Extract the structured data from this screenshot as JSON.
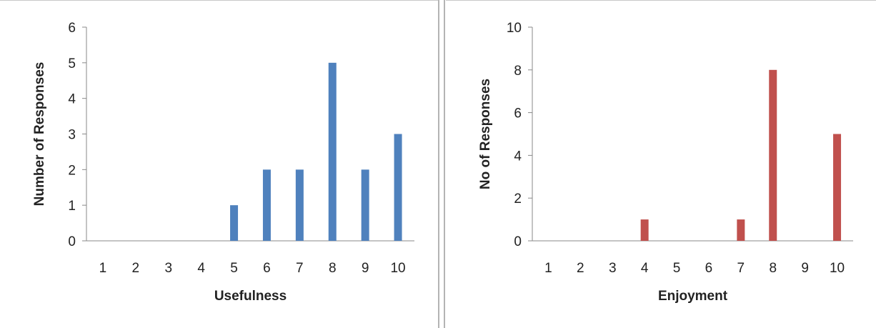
{
  "chart_data": [
    {
      "type": "bar",
      "categories": [
        "1",
        "2",
        "3",
        "4",
        "5",
        "6",
        "7",
        "8",
        "9",
        "10"
      ],
      "values": [
        0,
        0,
        0,
        0,
        1,
        2,
        2,
        5,
        2,
        3
      ],
      "xlabel": "Usefulness",
      "ylabel": "Number of Responses",
      "ylim": [
        0,
        6
      ],
      "yticks": [
        0,
        1,
        2,
        3,
        4,
        5,
        6
      ],
      "color": "#4F81BD",
      "grid": false,
      "legend": "none"
    },
    {
      "type": "bar",
      "categories": [
        "1",
        "2",
        "3",
        "4",
        "5",
        "6",
        "7",
        "8",
        "9",
        "10"
      ],
      "values": [
        0,
        0,
        0,
        1,
        0,
        0,
        1,
        8,
        0,
        5
      ],
      "xlabel": "Enjoyment",
      "ylabel": "No of Responses",
      "ylim": [
        0,
        10
      ],
      "yticks": [
        0,
        2,
        4,
        6,
        8,
        10
      ],
      "color": "#C0504D",
      "grid": false,
      "legend": "none"
    }
  ]
}
